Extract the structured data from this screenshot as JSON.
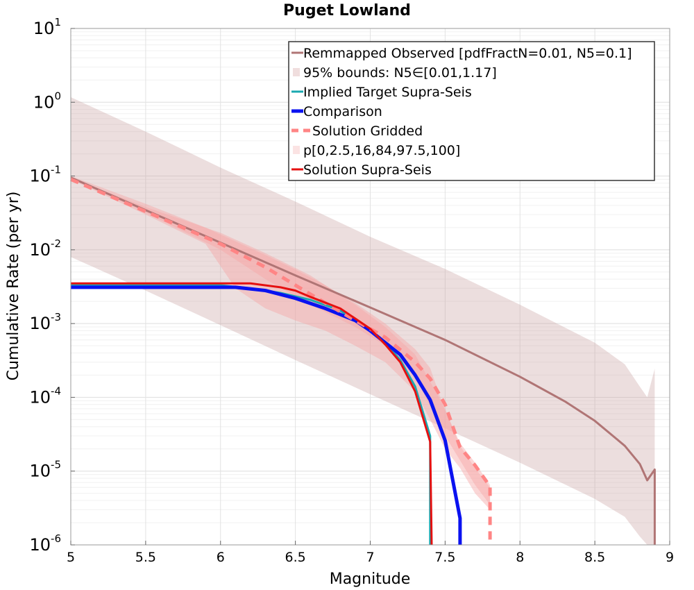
{
  "chart_data": {
    "type": "line",
    "title": "Puget Lowland",
    "xlabel": "Magnitude",
    "ylabel": "Cumulative Rate (per yr)",
    "xlim": [
      5,
      9
    ],
    "ylim": [
      1e-06,
      10
    ],
    "yscale": "log",
    "grid": true,
    "legend_position": "top-right",
    "x_ticks": [
      "5",
      "5.5",
      "6",
      "6.5",
      "7",
      "7.5",
      "8",
      "8.5",
      "9"
    ],
    "y_ticks": [
      {
        "base": "10",
        "exp": "1"
      },
      {
        "base": "10",
        "exp": "0"
      },
      {
        "base": "10",
        "exp": "-1"
      },
      {
        "base": "10",
        "exp": "-2"
      },
      {
        "base": "10",
        "exp": "-3"
      },
      {
        "base": "10",
        "exp": "-4"
      },
      {
        "base": "10",
        "exp": "-5"
      },
      {
        "base": "10",
        "exp": "-6"
      }
    ],
    "bands": [
      {
        "name": "95% bounds: N5∈[0.01,1.17]",
        "color": "#c9a0a0",
        "opacity": 0.35,
        "x": [
          5,
          5.5,
          6,
          6.5,
          7,
          7.5,
          8,
          8.5,
          8.7,
          8.8,
          8.85,
          8.9
        ],
        "upper": [
          1.17,
          0.4,
          0.13,
          0.045,
          0.015,
          0.0055,
          0.0018,
          0.00055,
          0.00028,
          0.00014,
          0.0001,
          0.000245
        ],
        "lower": [
          0.008,
          0.0028,
          0.00095,
          0.00032,
          0.00011,
          3.8e-05,
          1.3e-05,
          4.2e-06,
          2.4e-06,
          1.3e-06,
          1e-06,
          1e-06
        ]
      },
      {
        "name": "p[0,2.5,16,84,97.5,100]",
        "color": "#f6a7a7",
        "opacity": 0.45,
        "x": [
          5,
          5.5,
          5.9,
          6.1,
          6.3,
          6.5,
          6.7,
          6.9,
          7.1,
          7.3,
          7.4,
          7.5,
          7.6,
          7.7,
          7.8
        ],
        "upper": [
          0.1,
          0.042,
          0.02,
          0.013,
          0.0085,
          0.0054,
          0.0033,
          0.0019,
          0.001,
          0.00045,
          0.00025,
          6.5e-05,
          2.4e-05,
          1.3e-05,
          6.5e-06
        ],
        "lower": [
          0.09,
          0.03,
          0.012,
          0.003,
          0.0016,
          0.0011,
          0.0008,
          0.0005,
          0.0003,
          0.00012,
          5e-05,
          2e-05,
          1.1e-05,
          5e-06,
          3e-06
        ]
      },
      {
        "name": "",
        "color": "#f6a7a7",
        "opacity": 0.45,
        "x": [
          5,
          5.5,
          6,
          6.3,
          6.6,
          6.9,
          7.1,
          7.3,
          7.5,
          7.6,
          7.7,
          7.8
        ],
        "upper": [
          0.095,
          0.038,
          0.017,
          0.009,
          0.0045,
          0.0018,
          0.0009,
          0.00038,
          7e-05,
          2.2e-05,
          1.1e-05,
          6e-06
        ],
        "lower": [
          0.092,
          0.032,
          0.01,
          0.004,
          0.0018,
          0.0009,
          0.0005,
          0.00019,
          3e-05,
          1.4e-05,
          6.5e-06,
          3.5e-06
        ]
      }
    ],
    "series": [
      {
        "name": "Remmapped Observed [pdfFractN=0.01, N5=0.1]",
        "color": "#b07575",
        "width": 3,
        "dash": "",
        "x": [
          5,
          5.5,
          6,
          6.5,
          7,
          7.5,
          8,
          8.3,
          8.5,
          8.7,
          8.8,
          8.85,
          8.9,
          8.9
        ],
        "y": [
          0.095,
          0.0345,
          0.0125,
          0.0045,
          0.00165,
          0.0006,
          0.00019,
          8.8e-05,
          4.8e-05,
          2.2e-05,
          1.25e-05,
          7.5e-06,
          1.05e-05,
          1e-06
        ]
      },
      {
        "name": "Implied Target Supra-Seis",
        "color": "#1aa8b0",
        "width": 3,
        "dash": "",
        "x": [
          5,
          6,
          6.2,
          6.4,
          6.6,
          6.8,
          7,
          7.1,
          7.2,
          7.3,
          7.4,
          7.4
        ],
        "y": [
          0.0033,
          0.0033,
          0.003,
          0.0026,
          0.0021,
          0.0015,
          0.0008,
          0.00055,
          0.00032,
          0.00014,
          3e-05,
          1e-06
        ]
      },
      {
        "name": "Comparison",
        "color": "#0a12f0",
        "width": 5,
        "dash": "",
        "x": [
          5,
          6.1,
          6.3,
          6.5,
          6.7,
          6.9,
          7,
          7.1,
          7.2,
          7.3,
          7.4,
          7.5,
          7.6,
          7.6
        ],
        "y": [
          0.0031,
          0.0031,
          0.0028,
          0.0022,
          0.0016,
          0.0011,
          0.0008,
          0.00055,
          0.00038,
          0.0002,
          9.25e-05,
          2.6e-05,
          2.3e-06,
          1e-06
        ]
      },
      {
        "name": "Solution Gridded",
        "color": "#ff8585",
        "width": 5,
        "dash": "12,9",
        "x": [
          5,
          5.5,
          6,
          6.3,
          6.6,
          6.9,
          7.1,
          7.3,
          7.4,
          7.5,
          7.6,
          7.7,
          7.8,
          7.8
        ],
        "y": [
          0.09,
          0.033,
          0.012,
          0.0058,
          0.0025,
          0.0011,
          0.00065,
          0.0003,
          0.00018,
          8e-05,
          2.1e-05,
          1.2e-05,
          6.2e-06,
          1e-06
        ]
      },
      {
        "name": "Solution Supra-Seis",
        "color": "#e51010",
        "width": 3,
        "dash": "",
        "x": [
          5,
          6.2,
          6.4,
          6.5,
          6.6,
          6.8,
          7,
          7.1,
          7.2,
          7.3,
          7.4,
          7.41
        ],
        "y": [
          0.0035,
          0.0035,
          0.0031,
          0.0028,
          0.0023,
          0.0016,
          0.00085,
          0.00052,
          0.0003,
          0.00012,
          2.5e-05,
          1e-06
        ]
      }
    ],
    "legend": [
      {
        "label": "Remmapped Observed [pdfFractN=0.01, N5=0.1]",
        "kind": "line",
        "color": "#b07575",
        "width": 3,
        "dash": ""
      },
      {
        "label": "95% bounds: N5∈[0.01,1.17]",
        "kind": "patch",
        "color": "#f0dede",
        "width": 0,
        "dash": ""
      },
      {
        "label": "Implied Target Supra-Seis",
        "kind": "line",
        "color": "#1aa8b0",
        "width": 3,
        "dash": ""
      },
      {
        "label": "Comparison",
        "kind": "line",
        "color": "#0a12f0",
        "width": 5,
        "dash": ""
      },
      {
        "label": "Solution Gridded",
        "kind": "line",
        "color": "#ff8585",
        "width": 5,
        "dash": "10,7"
      },
      {
        "label": "p[0,2.5,16,84,97.5,100]",
        "kind": "patch",
        "color": "#fbe3e3",
        "width": 0,
        "dash": ""
      },
      {
        "label": "Solution Supra-Seis",
        "kind": "line",
        "color": "#e51010",
        "width": 3,
        "dash": ""
      }
    ]
  }
}
